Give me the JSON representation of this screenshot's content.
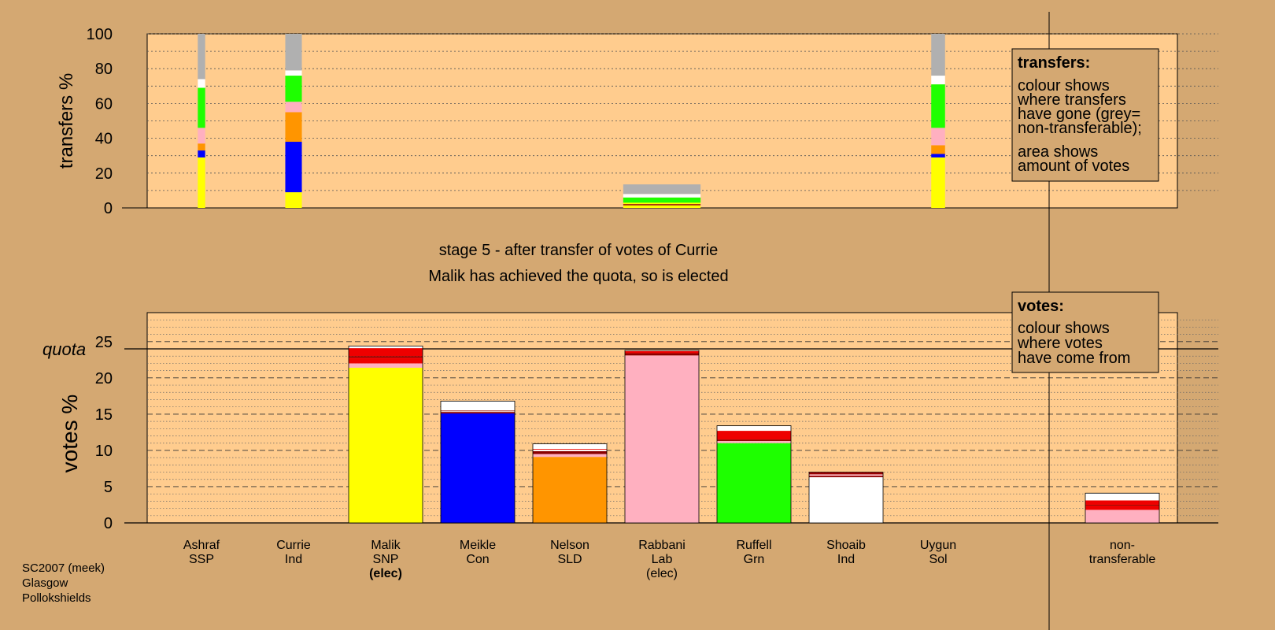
{
  "stage_title": "stage 5 - after transfer of votes of Currie",
  "stage_subtitle": "Malik has achieved the quota, so is elected",
  "footer": [
    "SC2007 (meek)",
    "Glasgow",
    "Pollokshields"
  ],
  "colors": {
    "background": "#D4A872",
    "plot": "#FFCC8E",
    "yellow": "#FFFF00",
    "blue": "#0000FF",
    "orange": "#FF9500",
    "pink": "#FFB0C0",
    "green": "#1EFF00",
    "white": "#FFFFFF",
    "grey": "#B0B0B0",
    "red": "#EE0000",
    "darkred": "#8B0000"
  },
  "transfers_legend": {
    "title": "transfers:",
    "lines1": [
      "colour shows",
      "where transfers",
      "have gone (grey=",
      "non-transferable);"
    ],
    "lines2": [
      "area shows",
      "amount of votes"
    ]
  },
  "votes_legend": {
    "title": "votes:",
    "lines": [
      "colour shows",
      "where votes",
      "have come from"
    ]
  },
  "chart_data": [
    {
      "type": "bar",
      "stacked": true,
      "ylabel": "transfers %",
      "ylim": [
        0,
        100
      ],
      "yticks": [
        0,
        20,
        40,
        60,
        80,
        100
      ],
      "grid": true,
      "bars": [
        {
          "name": "ashraf",
          "width": 0.08,
          "segments": [
            [
              "yellow",
              29
            ],
            [
              "blue",
              4
            ],
            [
              "orange",
              4
            ],
            [
              "pink",
              9
            ],
            [
              "green",
              23
            ],
            [
              "white",
              5
            ],
            [
              "grey",
              26
            ]
          ]
        },
        {
          "name": "currie",
          "width": 0.18,
          "segments": [
            [
              "yellow",
              9
            ],
            [
              "blue",
              29
            ],
            [
              "orange",
              17
            ],
            [
              "pink",
              6
            ],
            [
              "green",
              15
            ],
            [
              "white",
              3
            ],
            [
              "grey",
              21
            ]
          ]
        },
        {
          "name": "stage5-transfer",
          "width": 0.84,
          "segments": [
            [
              "yellow",
              1.5
            ],
            [
              "darkred",
              0.7
            ],
            [
              "yellow",
              0.8
            ],
            [
              "green",
              3
            ],
            [
              "white",
              2
            ],
            [
              "grey",
              5.5
            ]
          ]
        },
        {
          "name": "uygun",
          "width": 0.15,
          "segments": [
            [
              "yellow",
              29
            ],
            [
              "blue",
              2
            ],
            [
              "orange",
              5
            ],
            [
              "pink",
              10
            ],
            [
              "green",
              25
            ],
            [
              "white",
              5
            ],
            [
              "grey",
              24
            ]
          ]
        }
      ]
    },
    {
      "type": "bar",
      "stacked": true,
      "ylabel": "votes %",
      "ylim": [
        0,
        29
      ],
      "yticks": [
        0,
        5,
        10,
        15,
        20,
        25
      ],
      "quota": 24,
      "quota_label": "quota",
      "grid": true,
      "categories": [
        {
          "lines": [
            "Ashraf",
            "SSP"
          ],
          "segments": []
        },
        {
          "lines": [
            "Currie",
            "Ind"
          ],
          "segments": []
        },
        {
          "lines": [
            "Malik",
            "SNP",
            "(elec)"
          ],
          "elected": true,
          "segments": [
            [
              "yellow",
              21.4
            ],
            [
              "pink",
              0.6
            ],
            [
              "red",
              0.8
            ],
            [
              "darkred",
              0.2
            ],
            [
              "red",
              1.1
            ],
            [
              "white",
              0.3
            ]
          ]
        },
        {
          "lines": [
            "Meikle",
            "Con"
          ],
          "segments": [
            [
              "blue",
              15.1
            ],
            [
              "darkred",
              0.2
            ],
            [
              "white",
              0.1
            ],
            [
              "darkred",
              0.1
            ],
            [
              "white",
              1.3
            ]
          ]
        },
        {
          "lines": [
            "Nelson",
            "SLD"
          ],
          "segments": [
            [
              "orange",
              9.1
            ],
            [
              "pink",
              0.4
            ],
            [
              "darkred",
              0.4
            ],
            [
              "white",
              0.2
            ],
            [
              "red",
              0.1
            ],
            [
              "white",
              0.7
            ]
          ]
        },
        {
          "lines": [
            "Rabbani",
            "Lab",
            "(elec)"
          ],
          "segments": [
            [
              "pink",
              23.1
            ],
            [
              "darkred",
              0.3
            ],
            [
              "red",
              0.3
            ],
            [
              "white",
              0.1
            ]
          ]
        },
        {
          "lines": [
            "Ruffell",
            "Grn"
          ],
          "segments": [
            [
              "green",
              11.0
            ],
            [
              "pink",
              0.3
            ],
            [
              "darkred",
              0.2
            ],
            [
              "red",
              1.2
            ],
            [
              "white",
              0.7
            ]
          ]
        },
        {
          "lines": [
            "Shoaib",
            "Ind"
          ],
          "segments": [
            [
              "white",
              6.3
            ],
            [
              "darkred",
              0.2
            ],
            [
              "pink",
              0.2
            ],
            [
              "darkred",
              0.2
            ],
            [
              "red",
              0.1
            ]
          ]
        },
        {
          "lines": [
            "Uygun",
            "Sol"
          ],
          "segments": []
        },
        {
          "lines": [
            "non-",
            "transferable"
          ],
          "segments": [
            [
              "pink",
              1.8
            ],
            [
              "red",
              0.6
            ],
            [
              "darkred",
              0.1
            ],
            [
              "red",
              0.6
            ],
            [
              "white",
              1.0
            ]
          ]
        }
      ]
    }
  ]
}
